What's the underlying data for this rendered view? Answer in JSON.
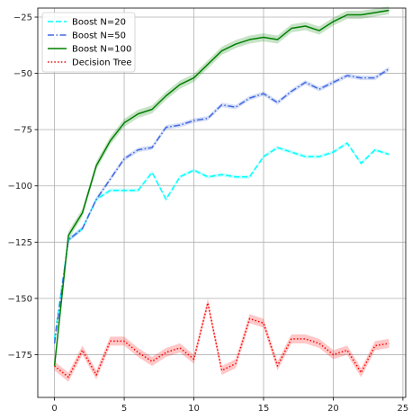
{
  "chart_data": {
    "type": "line",
    "title": "",
    "xlabel": "",
    "ylabel": "",
    "xlim": [
      -1.2,
      25.2
    ],
    "ylim": [
      -194,
      -21
    ],
    "x_ticks": [
      0,
      5,
      10,
      15,
      20,
      25
    ],
    "y_ticks": [
      -175,
      -150,
      -125,
      -100,
      -75,
      -50,
      -25
    ],
    "x_tick_labels": [
      "0",
      "5",
      "10",
      "15",
      "20",
      "25"
    ],
    "y_tick_labels": [
      "−175",
      "−150",
      "−125",
      "−100",
      "−75",
      "−50",
      "−25"
    ],
    "grid": true,
    "legend_position": "top-left",
    "x": [
      0,
      1,
      2,
      3,
      4,
      5,
      6,
      7,
      8,
      9,
      10,
      11,
      12,
      13,
      14,
      15,
      16,
      17,
      18,
      19,
      20,
      21,
      22,
      23,
      24
    ],
    "series": [
      {
        "name": "Boost N=20",
        "color": "#00ffff",
        "dash": "dashed",
        "values": [
          -168,
          -124,
          -119,
          -106,
          -102,
          -102,
          -102,
          -94,
          -106,
          -96,
          -93,
          -96,
          -95,
          -96,
          -96,
          -87,
          -83,
          -85,
          -87,
          -87,
          -85,
          -81,
          -90,
          -84,
          -86
        ],
        "band": 0.8
      },
      {
        "name": "Boost N=50",
        "color": "#4169e1",
        "dash": "dashdot",
        "values": [
          -170,
          -124,
          -119,
          -106,
          -97,
          -88,
          -84,
          -83,
          -74,
          -73,
          -71,
          -70,
          -64,
          -65,
          -61,
          -59,
          -63,
          -58,
          -54,
          -57,
          -54,
          -51,
          -52,
          -52,
          -48
        ],
        "band": 1.0
      },
      {
        "name": "Boost N=100",
        "color": "#008000",
        "dash": "solid",
        "values": [
          -180,
          -122,
          -112,
          -91,
          -80,
          -72,
          -68,
          -66,
          -60,
          -55,
          -52,
          -46,
          -40,
          -37,
          -35,
          -34,
          -35,
          -30,
          -29,
          -31,
          -27,
          -24,
          -24,
          -23,
          -22
        ],
        "band": 1.8
      },
      {
        "name": "Decision Tree",
        "color": "#ff0000",
        "dash": "dotted",
        "values": [
          -180,
          -185,
          -173,
          -184,
          -169,
          -169,
          -174,
          -178,
          -174,
          -172,
          -177,
          -152,
          -182,
          -179,
          -159,
          -161,
          -180,
          -168,
          -168,
          -170,
          -175,
          -173,
          -183,
          -171,
          -170
        ],
        "band": 2.0
      }
    ]
  }
}
